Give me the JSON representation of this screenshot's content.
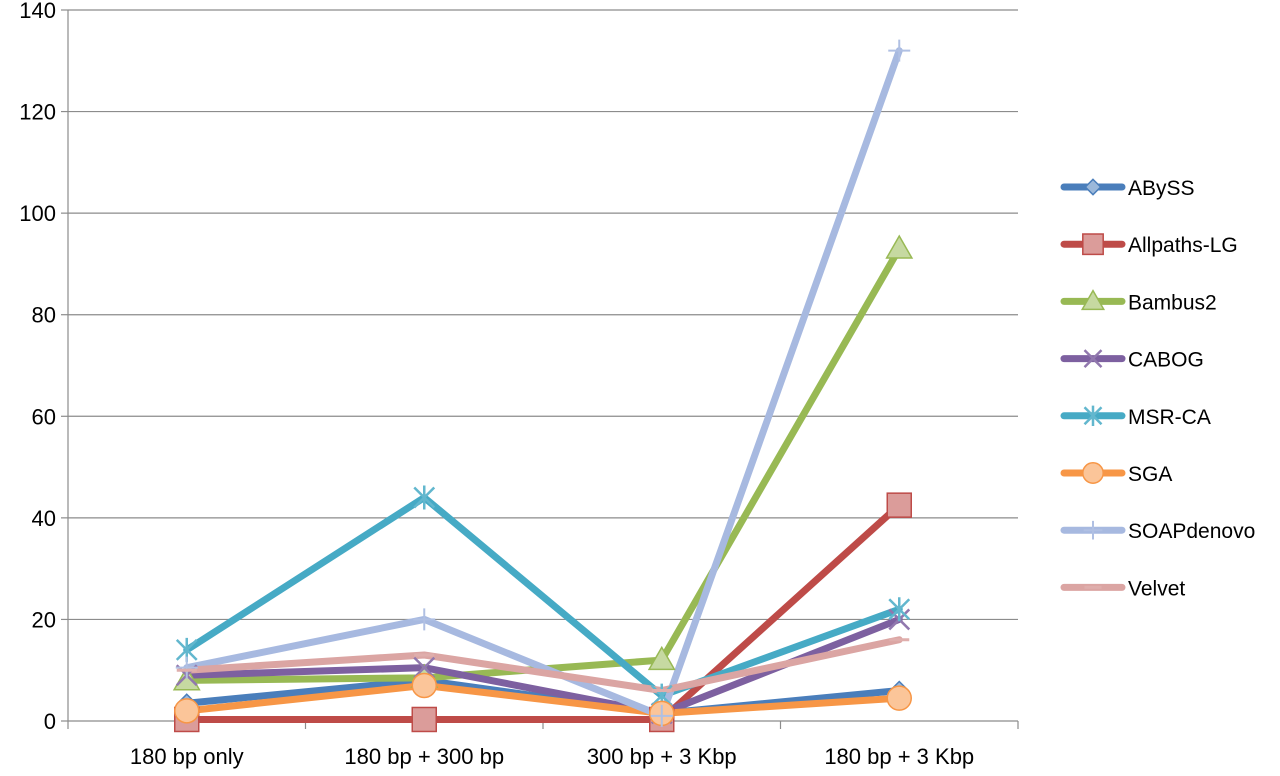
{
  "chart_data": {
    "type": "line",
    "categories": [
      "180 bp only",
      "180 bp + 300 bp",
      "300 bp + 3 Kbp",
      "180 bp + 3 Kbp"
    ],
    "ylim": [
      0,
      140
    ],
    "yticks": [
      0,
      20,
      40,
      60,
      80,
      100,
      120,
      140
    ],
    "grid": true,
    "legend_position": "right",
    "series": [
      {
        "name": "AByS S",
        "display": "ABySS",
        "marker": "diamond",
        "color": "#4a7ebb",
        "values": [
          3.5,
          8,
          1.5,
          6
        ]
      },
      {
        "name": "Allpaths-LG",
        "display": "Allpaths-LG",
        "marker": "square",
        "color": "#be4b48",
        "values": [
          0.3,
          0.3,
          0.3,
          42.5
        ]
      },
      {
        "name": "Bambus2",
        "display": "Bambus2",
        "marker": "triangle",
        "color": "#98b954",
        "values": [
          8,
          8.5,
          12,
          93
        ]
      },
      {
        "name": "CABOG",
        "display": "CABOG",
        "marker": "x",
        "color": "#7d60a0",
        "values": [
          9,
          10.5,
          1.5,
          20
        ]
      },
      {
        "name": "MSR-CA",
        "display": "MSR-CA",
        "marker": "star",
        "color": "#46aac5",
        "values": [
          14,
          44,
          5,
          22
        ]
      },
      {
        "name": "SGA",
        "display": "SGA",
        "marker": "circle",
        "color": "#f79646",
        "values": [
          2,
          7,
          1.5,
          4.5
        ]
      },
      {
        "name": "SOAPdenovo",
        "display": "SOAPdenovo",
        "marker": "plus",
        "color": "#a7b9e0",
        "values": [
          10.5,
          20,
          1,
          132
        ]
      },
      {
        "name": "Velvet",
        "display": "Velvet",
        "marker": "dash",
        "color": "#dba5a3",
        "values": [
          10,
          13,
          6,
          16
        ]
      }
    ]
  }
}
